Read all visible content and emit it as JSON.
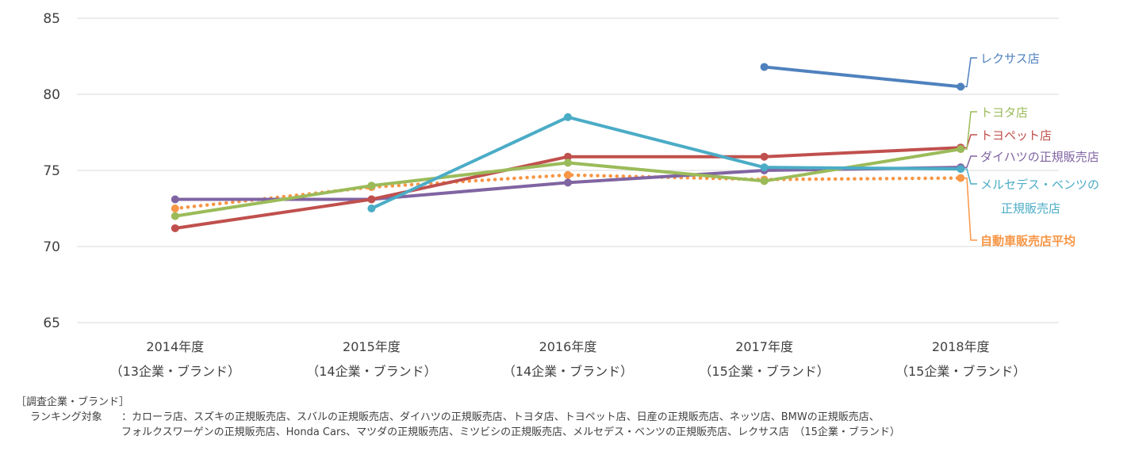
{
  "chart_data": {
    "type": "line",
    "ylim": [
      65,
      85
    ],
    "yticks": [
      65,
      70,
      75,
      80,
      85
    ],
    "grid": true,
    "categories": [
      [
        "2014年度",
        "（13企業・ブランド）"
      ],
      [
        "2015年度",
        "（14企業・ブランド）"
      ],
      [
        "2016年度",
        "（14企業・ブランド）"
      ],
      [
        "2017年度",
        "（15企業・ブランド）"
      ],
      [
        "2018年度",
        "（15企業・ブランド）"
      ]
    ],
    "series": [
      {
        "name": "自動車販売店平均",
        "color": "#F79646",
        "dotted": true,
        "bold": true,
        "values": [
          72.5,
          73.9,
          74.7,
          74.4,
          74.5
        ],
        "label_lines": [
          "自動車販売店平均"
        ]
      },
      {
        "name": "ダイハツの正規販売店",
        "color": "#8064A2",
        "values": [
          73.1,
          73.1,
          74.2,
          75.0,
          75.2
        ],
        "label_lines": [
          "ダイハツの正規販売店"
        ]
      },
      {
        "name": "トヨペット店",
        "color": "#C0504D",
        "values": [
          71.2,
          73.1,
          75.9,
          75.9,
          76.5
        ],
        "label_lines": [
          "トヨペット店"
        ]
      },
      {
        "name": "トヨタ店",
        "color": "#9BBB59",
        "values": [
          72.0,
          74.0,
          75.5,
          74.3,
          76.4
        ],
        "label_lines": [
          "トヨタ店"
        ]
      },
      {
        "name": "メルセデス・ベンツの正規販売店",
        "color": "#4BACC6",
        "values": [
          null,
          72.5,
          78.5,
          75.2,
          75.1
        ],
        "label_lines": [
          "メルセデス・ベンツの",
          "正規販売店"
        ]
      },
      {
        "name": "レクサス店",
        "color": "#4F81BD",
        "values": [
          null,
          null,
          null,
          81.8,
          80.5
        ],
        "label_lines": [
          "レクサス店"
        ]
      }
    ]
  },
  "footnote": {
    "heading": "［調査企業・ブランド］",
    "ranking_label": "ランキング対象",
    "line1": "：カローラ店、スズキの正規販売店、スバルの正規販売店、ダイハツの正規販売店、トヨタ店、トヨペット店、日産の正規販売店、ネッツ店、BMWの正規販売店、",
    "line2": "フォルクスワーゲンの正規販売店、Honda Cars、マツダの正規販売店、ミツビシの正規販売店、メルセデス・ベンツの正規販売店、レクサス店　（15企業・ブランド）"
  }
}
